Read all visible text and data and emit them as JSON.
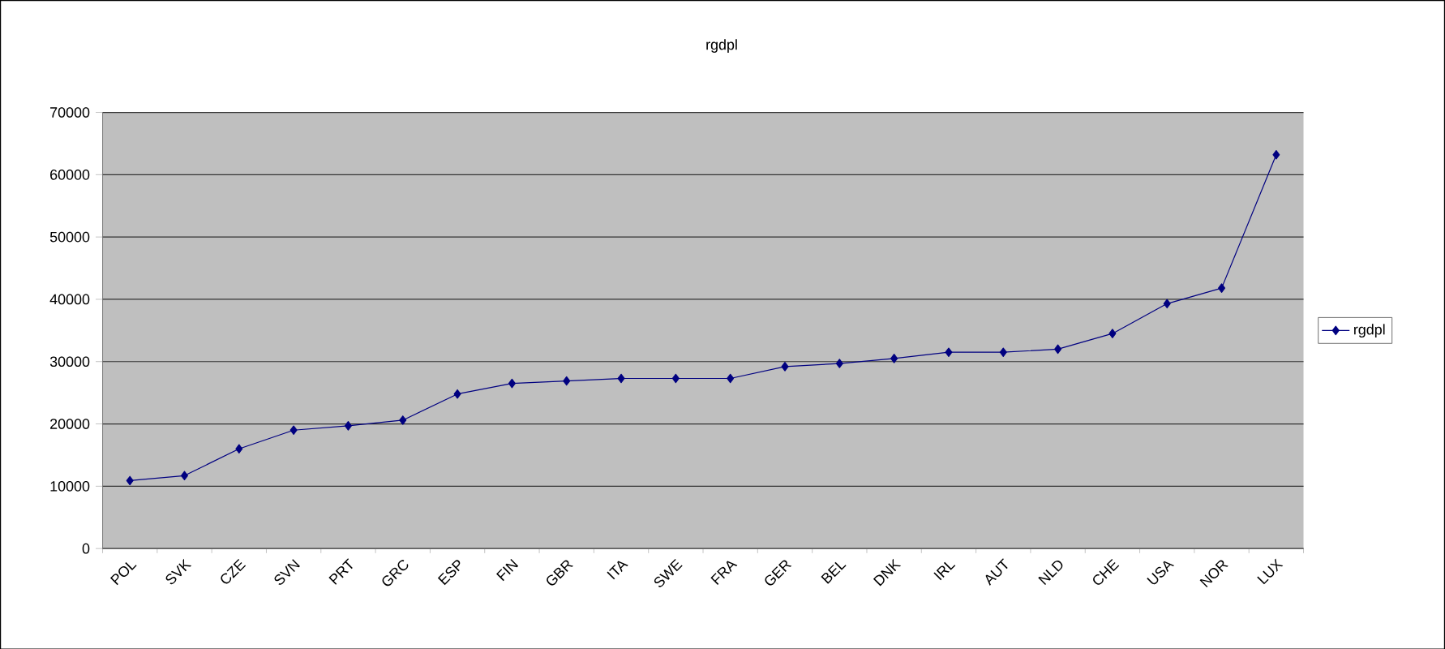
{
  "chart_data": {
    "type": "line",
    "title": "rgdpl",
    "categories": [
      "POL",
      "SVK",
      "CZE",
      "SVN",
      "PRT",
      "GRC",
      "ESP",
      "FIN",
      "GBR",
      "ITA",
      "SWE",
      "FRA",
      "GER",
      "BEL",
      "DNK",
      "IRL",
      "AUT",
      "NLD",
      "CHE",
      "USA",
      "NOR",
      "LUX"
    ],
    "series": [
      {
        "name": "rgdpl",
        "color": "#000080",
        "values": [
          10900,
          11700,
          16000,
          19000,
          19700,
          20600,
          24800,
          26500,
          26900,
          27300,
          27300,
          27300,
          29200,
          29700,
          30500,
          31500,
          31500,
          32000,
          34500,
          39300,
          41800,
          63200
        ]
      }
    ],
    "ylim": [
      0,
      70000
    ],
    "yticks": [
      0,
      10000,
      20000,
      30000,
      40000,
      50000,
      60000,
      70000
    ],
    "grid": "y",
    "legend": "right",
    "marker": "diamond",
    "line_style": "solid"
  }
}
